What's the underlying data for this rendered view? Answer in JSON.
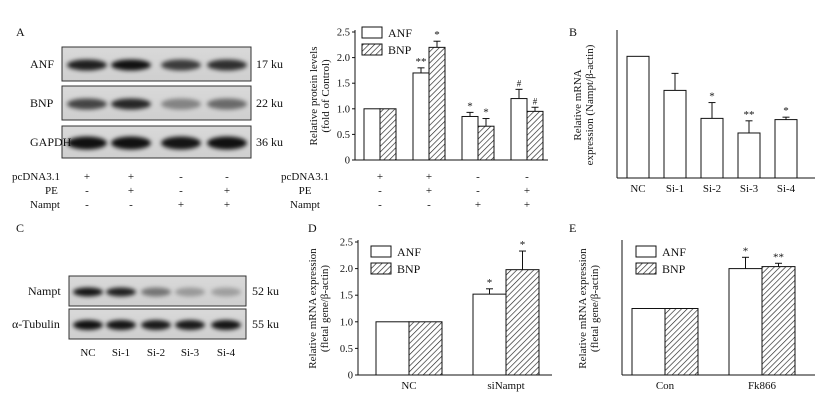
{
  "panels": [
    {
      "id": "A",
      "label": "A"
    },
    {
      "id": "B",
      "label": "B"
    },
    {
      "id": "C",
      "label": "C"
    },
    {
      "id": "D",
      "label": "D"
    },
    {
      "id": "E",
      "label": "E"
    }
  ],
  "blotA": {
    "rows": [
      {
        "name": "ANF",
        "size": "17 ku"
      },
      {
        "name": "BNP",
        "size": "22 ku"
      },
      {
        "name": "GAPDH",
        "size": "36 ku"
      }
    ],
    "treatments": [
      {
        "name": "pcDNA3.1",
        "marks": [
          "+",
          "+",
          "-",
          "-"
        ]
      },
      {
        "name": "PE",
        "marks": [
          "-",
          "+",
          "-",
          "+"
        ]
      },
      {
        "name": "Nampt",
        "marks": [
          "-",
          "-",
          "+",
          "+"
        ]
      }
    ]
  },
  "blotC": {
    "rows": [
      {
        "name": "Nampt",
        "size": "52 ku"
      },
      {
        "name": "α-Tubulin",
        "size": "55 ku"
      }
    ],
    "lanes": [
      "NC",
      "Si-1",
      "Si-2",
      "Si-3",
      "Si-4"
    ]
  },
  "chart_data": [
    {
      "panel": "A",
      "type": "bar",
      "ylabel": "Relative protein levels",
      "ylabel2": "(fold of Control)",
      "ylim": [
        0,
        2.5
      ],
      "yticks": [
        "0",
        "0.5",
        "1.0",
        "1.5",
        "2.0",
        "2.5"
      ],
      "legend": "top-left",
      "groups": 4,
      "series": [
        {
          "name": "ANF",
          "pattern": "open",
          "values": [
            1.0,
            1.7,
            0.85,
            1.2
          ],
          "errors": [
            0,
            0.1,
            0.08,
            0.18
          ],
          "marks": [
            "",
            "**",
            "*",
            "#"
          ]
        },
        {
          "name": "BNP",
          "pattern": "hatched",
          "values": [
            1.0,
            2.2,
            0.66,
            0.95
          ],
          "errors": [
            0,
            0.12,
            0.15,
            0.08
          ],
          "marks": [
            "",
            "*",
            "*",
            "#"
          ]
        }
      ],
      "treatments": [
        {
          "name": "pcDNA3.1",
          "marks": [
            "+",
            "+",
            "-",
            "-"
          ]
        },
        {
          "name": "PE",
          "marks": [
            "-",
            "+",
            "-",
            "+"
          ]
        },
        {
          "name": "Nampt",
          "marks": [
            "-",
            "-",
            "+",
            "+"
          ]
        }
      ]
    },
    {
      "panel": "B",
      "type": "bar",
      "ylabel": "Relative mRNA",
      "ylabel2": "expression (Nampt/β-actin)",
      "ylim": [
        0,
        1.2
      ],
      "categories": [
        "NC",
        "Si-1",
        "Si-2",
        "Si-3",
        "Si-4"
      ],
      "values": [
        1.0,
        0.72,
        0.49,
        0.37,
        0.48
      ],
      "errors": [
        0,
        0.14,
        0.13,
        0.1,
        0.02
      ],
      "marks": [
        "",
        "",
        "*",
        "**",
        "*"
      ]
    },
    {
      "panel": "D",
      "type": "bar",
      "ylabel": "Relative mRNA expression",
      "ylabel2": "(fletal gene/β-actin)",
      "ylim": [
        0,
        2.5
      ],
      "yticks": [
        "0",
        "0.5",
        "1.0",
        "1.5",
        "2.0",
        "2.5"
      ],
      "categories": [
        "NC",
        "siNampt"
      ],
      "legend": "top-left",
      "series": [
        {
          "name": "ANF",
          "pattern": "open",
          "values": [
            1.0,
            1.52
          ],
          "errors": [
            0,
            0.1
          ],
          "marks": [
            "",
            "*"
          ]
        },
        {
          "name": "BNP",
          "pattern": "hatched",
          "values": [
            1.0,
            1.98
          ],
          "errors": [
            0,
            0.35
          ],
          "marks": [
            "",
            "*"
          ]
        }
      ]
    },
    {
      "panel": "E",
      "type": "bar",
      "ylabel": "Relative mRNA expression",
      "ylabel2": "(fletal gene/β-actin)",
      "ylim": [
        0,
        2.0
      ],
      "categories": [
        "Con",
        "Fk866"
      ],
      "legend": "top-left",
      "series": [
        {
          "name": "ANF",
          "pattern": "open",
          "values": [
            1.0,
            1.6
          ],
          "errors": [
            0,
            0.17
          ],
          "marks": [
            "",
            "*"
          ]
        },
        {
          "name": "BNP",
          "pattern": "hatched",
          "values": [
            1.0,
            1.63
          ],
          "errors": [
            0,
            0.05
          ],
          "marks": [
            "",
            "**"
          ]
        }
      ]
    }
  ]
}
